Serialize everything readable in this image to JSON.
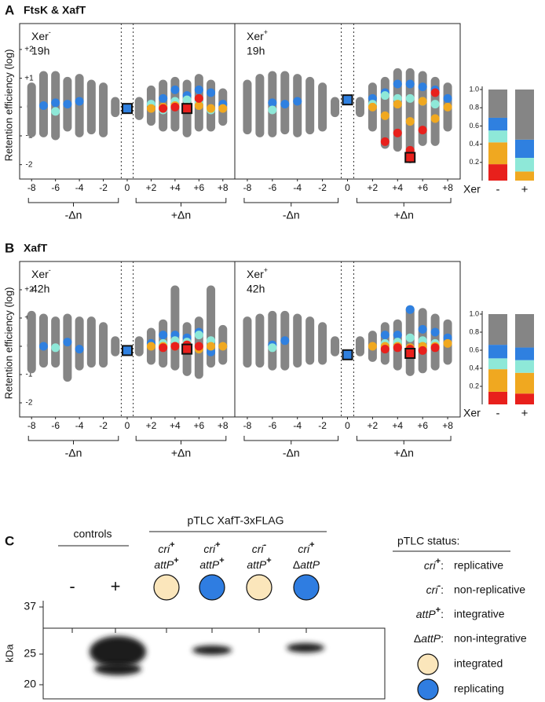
{
  "panel_headers": [
    {
      "letter": "A",
      "title": "FtsK & XafT"
    },
    {
      "letter": "B",
      "title": "XafT"
    }
  ],
  "chart_data": [
    {
      "type": "strip",
      "ylabel": "Retention efficiency (log)",
      "panel_label": "Xer",
      "panel_sup": "-",
      "time": "19h",
      "xlim": [
        -9,
        9
      ],
      "ylim": [
        -2.5,
        2.9
      ],
      "xticks": [
        -8,
        -6,
        -4,
        -2,
        0,
        {
          "value": 2,
          "label": "+2"
        },
        {
          "value": 4,
          "label": "+4"
        },
        {
          "value": 6,
          "label": "+6"
        },
        {
          "value": 8,
          "label": "+8"
        }
      ],
      "yticks": [
        {
          "value": 2,
          "label": "+2"
        },
        {
          "value": 1,
          "label": "+1"
        },
        0,
        -1,
        -2
      ],
      "group_labels": [
        "-Δn",
        "+Δn"
      ],
      "x": [
        -8,
        -7,
        -6,
        -5,
        -4,
        -3,
        -2,
        -1,
        1,
        2,
        3,
        4,
        5,
        6,
        7,
        8
      ],
      "low": [
        -0.9,
        -0.9,
        -1.0,
        -0.7,
        -0.9,
        -0.8,
        -0.9,
        -0.2,
        -0.3,
        -0.5,
        -0.7,
        -0.7,
        -0.9,
        -0.7,
        -0.7,
        -0.5
      ],
      "high": [
        0.7,
        1.1,
        1.1,
        0.9,
        1.0,
        0.8,
        0.7,
        0.2,
        0.2,
        0.6,
        0.8,
        0.9,
        0.8,
        1.0,
        0.8,
        0.5
      ],
      "range_color": "#858585",
      "series": [
        {
          "color": "#2f80e0",
          "values": [
            null,
            0.05,
            0.15,
            0.1,
            0.2,
            null,
            null,
            null,
            null,
            0.1,
            0.3,
            0.6,
            0.4,
            0.6,
            0.5,
            0.1
          ]
        },
        {
          "color": "#8ee8d8",
          "values": [
            null,
            null,
            -0.15,
            null,
            null,
            null,
            null,
            null,
            null,
            0.1,
            -0.1,
            0.2,
            0.25,
            0.15,
            -0.1,
            null
          ]
        },
        {
          "color": "#f0a820",
          "values": [
            null,
            null,
            null,
            null,
            null,
            null,
            null,
            null,
            null,
            -0.05,
            0,
            0.05,
            0,
            0.05,
            -0.05,
            -0.05
          ]
        },
        {
          "color": "#e8201c",
          "values": [
            null,
            null,
            null,
            null,
            null,
            null,
            null,
            null,
            null,
            null,
            -0.05,
            0,
            -0.05,
            0.3,
            null,
            null
          ]
        }
      ],
      "ref": {
        "x": 0,
        "y": -0.05,
        "color": "#2f80e0"
      },
      "marker": {
        "x": 5,
        "y": -0.05,
        "color": "#e8201c"
      }
    },
    {
      "type": "strip",
      "panel_label": "Xer",
      "panel_sup": "+",
      "time": "19h",
      "xlim": [
        -9,
        9
      ],
      "ylim": [
        -2.5,
        2.9
      ],
      "xticks": [
        -8,
        -6,
        -4,
        -2,
        0,
        {
          "value": 2,
          "label": "+2"
        },
        {
          "value": 4,
          "label": "+4"
        },
        {
          "value": 6,
          "label": "+6"
        },
        {
          "value": 8,
          "label": "+8"
        }
      ],
      "group_labels": [
        "-Δn",
        "+Δn"
      ],
      "x": [
        -8,
        -7,
        -6,
        -5,
        -4,
        -3,
        -2,
        -1,
        1,
        2,
        3,
        4,
        5,
        6,
        7,
        8
      ],
      "low": [
        -0.8,
        -0.9,
        -0.9,
        -0.8,
        -0.9,
        -0.8,
        -0.7,
        -0.2,
        -0.2,
        -0.7,
        -1.3,
        -1.4,
        -1.8,
        -1.2,
        -1.2,
        -0.7
      ],
      "high": [
        0.8,
        1.0,
        1.1,
        1.1,
        1.0,
        0.9,
        0.7,
        0.2,
        0.2,
        0.7,
        0.9,
        1.2,
        1.2,
        1.1,
        0.9,
        0.7
      ],
      "range_color": "#858585",
      "series": [
        {
          "color": "#2f80e0",
          "values": [
            null,
            null,
            0.15,
            0.1,
            0.2,
            null,
            null,
            null,
            null,
            0.3,
            0.5,
            0.8,
            0.8,
            0.7,
            0.6,
            0.3
          ]
        },
        {
          "color": "#8ee8d8",
          "values": [
            null,
            null,
            -0.1,
            null,
            null,
            null,
            null,
            null,
            null,
            0.1,
            0.4,
            0.3,
            0.3,
            0.2,
            0.1,
            null
          ]
        },
        {
          "color": "#f0a820",
          "values": [
            null,
            null,
            null,
            null,
            null,
            null,
            null,
            null,
            null,
            0,
            -0.3,
            0.1,
            -0.5,
            0.2,
            -0.4,
            0
          ]
        },
        {
          "color": "#e8201c",
          "values": [
            null,
            null,
            null,
            null,
            null,
            null,
            null,
            null,
            null,
            null,
            -1.2,
            -0.9,
            -1.5,
            -0.8,
            0.5,
            null
          ]
        }
      ],
      "ref": {
        "x": 0,
        "y": 0.25,
        "color": "#2f80e0"
      },
      "marker": {
        "x": 5,
        "y": -1.75,
        "color": "#e8201c"
      }
    },
    {
      "type": "strip",
      "ylabel": "Retention efficiency (log)",
      "panel_label": "Xer",
      "panel_sup": "-",
      "time": "42h",
      "xlim": [
        -9,
        9
      ],
      "ylim": [
        -2.5,
        3
      ],
      "xticks": [
        -8,
        -6,
        -4,
        -2,
        0,
        {
          "value": 2,
          "label": "+2"
        },
        {
          "value": 4,
          "label": "+4"
        },
        {
          "value": 6,
          "label": "+6"
        },
        {
          "value": 8,
          "label": "+8"
        }
      ],
      "yticks": [
        {
          "value": 2,
          "label": "+2"
        },
        {
          "value": 1,
          "label": "+1"
        },
        0,
        -1,
        -2
      ],
      "group_labels": [
        "-Δn",
        "+Δn"
      ],
      "x": [
        -8,
        -7,
        -6,
        -5,
        -4,
        -3,
        -2,
        -1,
        1,
        2,
        3,
        4,
        5,
        6,
        7,
        8
      ],
      "low": [
        -0.8,
        -0.6,
        -0.6,
        -1.1,
        -0.7,
        -0.6,
        -0.6,
        -0.2,
        -0.2,
        -0.5,
        -0.6,
        -0.7,
        -0.9,
        -1.0,
        -0.6,
        -0.5
      ],
      "high": [
        1.1,
        1.0,
        0.9,
        1.0,
        0.9,
        0.9,
        0.7,
        0.2,
        0.2,
        0.5,
        0.8,
        2.0,
        0.7,
        0.9,
        2.0,
        0.6
      ],
      "range_color": "#858585",
      "series": [
        {
          "color": "#2f80e0",
          "values": [
            null,
            0,
            null,
            0.15,
            -0.1,
            null,
            null,
            null,
            null,
            0.1,
            0.4,
            0.4,
            0.3,
            0.5,
            -0.2,
            0
          ]
        },
        {
          "color": "#8ee8d8",
          "values": [
            null,
            null,
            -0.05,
            null,
            null,
            null,
            null,
            null,
            null,
            null,
            0.1,
            0.2,
            0.15,
            0.4,
            0.2,
            null
          ]
        },
        {
          "color": "#f0a820",
          "values": [
            null,
            null,
            null,
            null,
            null,
            null,
            null,
            null,
            null,
            0,
            0,
            0,
            0.05,
            -0.1,
            0,
            0
          ]
        },
        {
          "color": "#e8201c",
          "values": [
            null,
            null,
            null,
            null,
            null,
            null,
            null,
            null,
            null,
            null,
            -0.05,
            0,
            0.05,
            0,
            null,
            null
          ]
        }
      ],
      "ref": {
        "x": 0,
        "y": -0.15,
        "color": "#2f80e0"
      },
      "marker": {
        "x": 5,
        "y": -0.1,
        "color": "#e8201c"
      }
    },
    {
      "type": "strip",
      "panel_label": "Xer",
      "panel_sup": "+",
      "time": "42h",
      "xlim": [
        -9,
        9
      ],
      "ylim": [
        -2.5,
        3
      ],
      "xticks": [
        -8,
        -6,
        -4,
        -2,
        0,
        {
          "value": 2,
          "label": "+2"
        },
        {
          "value": 4,
          "label": "+4"
        },
        {
          "value": 6,
          "label": "+6"
        },
        {
          "value": 8,
          "label": "+8"
        }
      ],
      "group_labels": [
        "-Δn",
        "+Δn"
      ],
      "x": [
        -8,
        -7,
        -6,
        -5,
        -4,
        -3,
        -2,
        -1,
        1,
        2,
        3,
        4,
        5,
        6,
        7,
        8
      ],
      "low": [
        -0.6,
        -0.6,
        -0.7,
        -0.7,
        -0.6,
        -0.5,
        -0.5,
        -0.2,
        -0.2,
        -0.4,
        -0.5,
        -0.7,
        -0.9,
        -0.8,
        -0.7,
        -0.5
      ],
      "high": [
        0.9,
        1.0,
        1.1,
        1.1,
        1.0,
        0.9,
        0.7,
        0.2,
        0.2,
        0.4,
        0.7,
        0.8,
        1.3,
        1.2,
        1.0,
        0.8
      ],
      "range_color": "#858585",
      "series": [
        {
          "color": "#2f80e0",
          "values": [
            null,
            null,
            0.05,
            0.2,
            null,
            null,
            null,
            null,
            null,
            null,
            0.4,
            0.4,
            1.3,
            0.6,
            0.5,
            0.3
          ]
        },
        {
          "color": "#8ee8d8",
          "values": [
            null,
            null,
            -0.05,
            null,
            null,
            null,
            null,
            null,
            null,
            null,
            0.1,
            0.15,
            0.3,
            0.2,
            0.1,
            null
          ]
        },
        {
          "color": "#f0a820",
          "values": [
            null,
            null,
            null,
            null,
            null,
            null,
            null,
            null,
            null,
            0,
            0,
            0,
            -0.05,
            0,
            0,
            0.1
          ]
        },
        {
          "color": "#e8201c",
          "values": [
            null,
            null,
            null,
            null,
            null,
            null,
            null,
            null,
            null,
            null,
            -0.1,
            -0.05,
            -0.1,
            -0.15,
            -0.05,
            null
          ]
        }
      ],
      "ref": {
        "x": 0,
        "y": -0.3,
        "color": "#2f80e0"
      },
      "marker": {
        "x": 5,
        "y": -0.25,
        "color": "#e8201c"
      }
    },
    {
      "type": "stacked_bar",
      "categories": [
        "-",
        "+"
      ],
      "xlabel": "Xer",
      "ylim": [
        0,
        1
      ],
      "yticks": [
        0.2,
        0.4,
        0.6,
        0.8,
        {
          "value": 1,
          "label": "1.0"
        }
      ],
      "series": [
        {
          "color": "#e8201c",
          "values": [
            0.18,
            0
          ]
        },
        {
          "color": "#f0a820",
          "values": [
            0.24,
            0.1
          ]
        },
        {
          "color": "#8ee8d8",
          "values": [
            0.13,
            0.15
          ]
        },
        {
          "color": "#2f80e0",
          "values": [
            0.14,
            0.2
          ]
        },
        {
          "color": "#858585",
          "values": [
            0.31,
            0.55
          ]
        }
      ]
    },
    {
      "type": "stacked_bar",
      "categories": [
        "-",
        "+"
      ],
      "xlabel": "Xer",
      "ylim": [
        0,
        1
      ],
      "yticks": [
        0.2,
        0.4,
        0.6,
        0.8,
        {
          "value": 1,
          "label": "1.0"
        }
      ],
      "series": [
        {
          "color": "#e8201c",
          "values": [
            0.14,
            0.12
          ]
        },
        {
          "color": "#f0a820",
          "values": [
            0.25,
            0.23
          ]
        },
        {
          "color": "#8ee8d8",
          "values": [
            0.12,
            0.14
          ]
        },
        {
          "color": "#2f80e0",
          "values": [
            0.15,
            0.14
          ]
        },
        {
          "color": "#858585",
          "values": [
            0.34,
            0.37
          ]
        }
      ]
    }
  ],
  "blot": {
    "letter": "C",
    "construct": "pTLC XafT-3xFLAG",
    "controls": "controls",
    "control_signs": [
      "-",
      "+"
    ],
    "lanes": [
      {
        "cri": "cri",
        "cri_sup": "+",
        "attP_prefix": "",
        "attP": "attP",
        "attP_sup": "+"
      },
      {
        "cri": "cri",
        "cri_sup": "+",
        "attP_prefix": "",
        "attP": "attP",
        "attP_sup": "+"
      },
      {
        "cri": "cri",
        "cri_sup": "-",
        "attP_prefix": "",
        "attP": "attP",
        "attP_sup": "+"
      },
      {
        "cri": "cri",
        "cri_sup": "+",
        "attP_prefix": "Δ",
        "attP": "attP",
        "attP_sup": ""
      }
    ],
    "markers": [
      37,
      25,
      20
    ],
    "unit": "kDa",
    "legend": {
      "title": "pTLC status:",
      "rows": [
        {
          "prefix": "",
          "term": "cri",
          "sup": "+",
          "colon": ":",
          "desc": "replicative"
        },
        {
          "prefix": "",
          "term": "cri",
          "sup": "-",
          "colon": ":",
          "desc": "non-replicative"
        },
        {
          "prefix": "",
          "term": "attP",
          "sup": "+",
          "colon": ":",
          "desc": "integrative"
        },
        {
          "prefix": "Δ",
          "term": "attP",
          "sup": "",
          "colon": ":",
          "desc": "non-integrative"
        }
      ],
      "circles": [
        {
          "color": "#fbe6bb",
          "desc": "integrated"
        },
        {
          "color": "#2f7de1",
          "desc": "replicating"
        }
      ]
    }
  }
}
